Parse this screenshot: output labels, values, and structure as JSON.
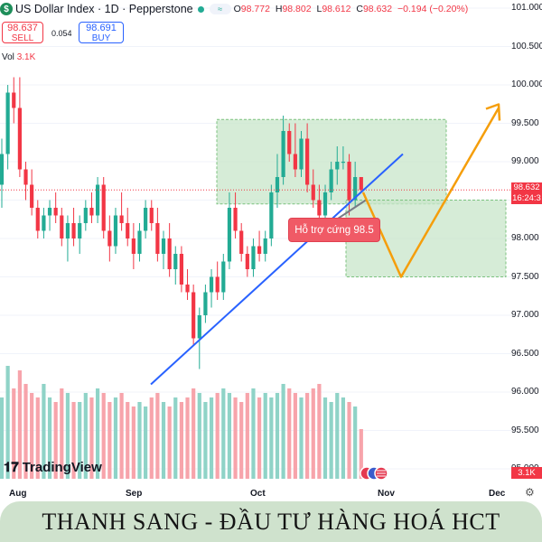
{
  "header": {
    "symbol_icon": "dollar-icon",
    "title": "US Dollar Index · 1D · Pepperstone",
    "badge": "≈",
    "ohlc": [
      {
        "label": "O",
        "value": "98.772"
      },
      {
        "label": "H",
        "value": "98.802"
      },
      {
        "label": "L",
        "value": "98.612"
      },
      {
        "label": "C",
        "value": "98.632"
      },
      {
        "label": "",
        "value": "−0.194 (−0.20%)"
      }
    ]
  },
  "trade": {
    "sell_price": "98.637",
    "sell_label": "SELL",
    "spread": "0.054",
    "buy_price": "98.691",
    "buy_label": "BUY"
  },
  "volume_legend": {
    "label": "Vol",
    "value": "3.1K"
  },
  "annotation": "Hỗ trợ cứng 98.5",
  "last_price": {
    "price": "98.632",
    "countdown": "16:24:3"
  },
  "volume_tag": "3.1K",
  "watermark": "TradingView",
  "banner": "THANH SANG - ĐẦU TƯ HÀNG HOÁ HCT",
  "colors": {
    "up": "#22ab94",
    "down": "#f23645",
    "zone": "#c8e6c9",
    "trend": "#2962ff",
    "projection": "#f59e0b"
  },
  "chart_data": {
    "type": "candlestick",
    "symbol": "US Dollar Index",
    "timeframe": "1D",
    "x_ticks": [
      "Aug",
      "Sep",
      "Oct",
      "Nov",
      "Dec"
    ],
    "y_ticks": [
      101.0,
      100.5,
      100.0,
      99.5,
      99.0,
      98.5,
      98.0,
      97.5,
      97.0,
      96.5,
      96.0,
      95.5,
      95.0
    ],
    "ylim": [
      95.0,
      101.0
    ],
    "candles": [
      {
        "o": 98.7,
        "h": 99.3,
        "l": 98.4,
        "c": 99.1
      },
      {
        "o": 99.1,
        "h": 100.0,
        "l": 98.9,
        "c": 99.9
      },
      {
        "o": 99.9,
        "h": 100.1,
        "l": 99.5,
        "c": 99.7
      },
      {
        "o": 99.7,
        "h": 100.1,
        "l": 98.8,
        "c": 98.9
      },
      {
        "o": 98.9,
        "h": 99.0,
        "l": 98.5,
        "c": 98.7
      },
      {
        "o": 98.7,
        "h": 98.9,
        "l": 98.3,
        "c": 98.4
      },
      {
        "o": 98.4,
        "h": 98.5,
        "l": 98.0,
        "c": 98.1
      },
      {
        "o": 98.1,
        "h": 98.4,
        "l": 98.0,
        "c": 98.3
      },
      {
        "o": 98.3,
        "h": 98.5,
        "l": 98.1,
        "c": 98.4
      },
      {
        "o": 98.4,
        "h": 98.6,
        "l": 98.2,
        "c": 98.3
      },
      {
        "o": 98.3,
        "h": 98.4,
        "l": 97.9,
        "c": 98.0
      },
      {
        "o": 98.0,
        "h": 98.3,
        "l": 97.7,
        "c": 98.2
      },
      {
        "o": 98.2,
        "h": 98.4,
        "l": 97.9,
        "c": 98.0
      },
      {
        "o": 98.0,
        "h": 98.3,
        "l": 97.8,
        "c": 98.2
      },
      {
        "o": 98.2,
        "h": 98.5,
        "l": 98.1,
        "c": 98.4
      },
      {
        "o": 98.4,
        "h": 98.6,
        "l": 98.2,
        "c": 98.3
      },
      {
        "o": 98.3,
        "h": 98.8,
        "l": 98.2,
        "c": 98.7
      },
      {
        "o": 98.7,
        "h": 98.8,
        "l": 98.0,
        "c": 98.1
      },
      {
        "o": 98.1,
        "h": 98.3,
        "l": 97.7,
        "c": 97.9
      },
      {
        "o": 97.9,
        "h": 98.4,
        "l": 97.8,
        "c": 98.3
      },
      {
        "o": 98.3,
        "h": 98.6,
        "l": 98.1,
        "c": 98.2
      },
      {
        "o": 98.2,
        "h": 98.4,
        "l": 97.9,
        "c": 98.0
      },
      {
        "o": 98.0,
        "h": 98.2,
        "l": 97.6,
        "c": 97.8
      },
      {
        "o": 97.8,
        "h": 98.2,
        "l": 97.7,
        "c": 98.1
      },
      {
        "o": 98.1,
        "h": 98.5,
        "l": 98.0,
        "c": 98.4
      },
      {
        "o": 98.4,
        "h": 98.5,
        "l": 98.1,
        "c": 98.2
      },
      {
        "o": 98.2,
        "h": 98.4,
        "l": 97.7,
        "c": 97.8
      },
      {
        "o": 97.8,
        "h": 98.1,
        "l": 97.6,
        "c": 98.0
      },
      {
        "o": 98.0,
        "h": 98.2,
        "l": 97.5,
        "c": 97.6
      },
      {
        "o": 97.6,
        "h": 97.9,
        "l": 97.4,
        "c": 97.8
      },
      {
        "o": 97.8,
        "h": 97.9,
        "l": 97.3,
        "c": 97.4
      },
      {
        "o": 97.4,
        "h": 97.6,
        "l": 97.2,
        "c": 97.3
      },
      {
        "o": 97.3,
        "h": 97.4,
        "l": 96.6,
        "c": 96.7
      },
      {
        "o": 96.7,
        "h": 97.1,
        "l": 96.3,
        "c": 97.0
      },
      {
        "o": 97.0,
        "h": 97.4,
        "l": 96.9,
        "c": 97.3
      },
      {
        "o": 97.3,
        "h": 97.6,
        "l": 97.1,
        "c": 97.5
      },
      {
        "o": 97.5,
        "h": 97.7,
        "l": 97.2,
        "c": 97.3
      },
      {
        "o": 97.3,
        "h": 97.8,
        "l": 97.2,
        "c": 97.7
      },
      {
        "o": 97.7,
        "h": 98.6,
        "l": 97.6,
        "c": 98.4
      },
      {
        "o": 98.4,
        "h": 98.6,
        "l": 98.0,
        "c": 98.1
      },
      {
        "o": 98.1,
        "h": 98.2,
        "l": 97.7,
        "c": 97.8
      },
      {
        "o": 97.8,
        "h": 97.9,
        "l": 97.5,
        "c": 97.6
      },
      {
        "o": 97.6,
        "h": 98.0,
        "l": 97.5,
        "c": 97.9
      },
      {
        "o": 97.9,
        "h": 98.1,
        "l": 97.7,
        "c": 97.8
      },
      {
        "o": 97.8,
        "h": 98.1,
        "l": 97.7,
        "c": 98.0
      },
      {
        "o": 98.0,
        "h": 98.7,
        "l": 97.9,
        "c": 98.6
      },
      {
        "o": 98.6,
        "h": 99.1,
        "l": 98.4,
        "c": 98.8
      },
      {
        "o": 98.8,
        "h": 99.6,
        "l": 98.7,
        "c": 99.4
      },
      {
        "o": 99.4,
        "h": 99.5,
        "l": 99.0,
        "c": 99.1
      },
      {
        "o": 99.1,
        "h": 99.5,
        "l": 98.8,
        "c": 98.9
      },
      {
        "o": 98.9,
        "h": 99.4,
        "l": 98.8,
        "c": 99.3
      },
      {
        "o": 99.3,
        "h": 99.5,
        "l": 98.6,
        "c": 98.7
      },
      {
        "o": 98.7,
        "h": 98.9,
        "l": 98.4,
        "c": 98.5
      },
      {
        "o": 98.5,
        "h": 98.7,
        "l": 98.2,
        "c": 98.3
      },
      {
        "o": 98.3,
        "h": 98.7,
        "l": 98.2,
        "c": 98.6
      },
      {
        "o": 98.6,
        "h": 99.0,
        "l": 98.5,
        "c": 98.9
      },
      {
        "o": 98.9,
        "h": 99.2,
        "l": 98.7,
        "c": 99.0
      },
      {
        "o": 99.0,
        "h": 99.2,
        "l": 98.9,
        "c": 99.0
      },
      {
        "o": 99.0,
        "h": 99.1,
        "l": 98.3,
        "c": 98.5
      },
      {
        "o": 98.5,
        "h": 99.0,
        "l": 98.4,
        "c": 98.8
      },
      {
        "o": 98.8,
        "h": 98.8,
        "l": 98.6,
        "c": 98.632
      }
    ],
    "volume": [
      0.9,
      1.25,
      1.0,
      1.2,
      1.05,
      0.95,
      0.9,
      1.05,
      0.9,
      0.85,
      1.0,
      0.95,
      0.85,
      0.85,
      0.95,
      0.9,
      1.0,
      0.95,
      0.85,
      0.9,
      0.95,
      0.85,
      0.8,
      0.85,
      0.8,
      0.9,
      0.95,
      0.85,
      0.8,
      0.9,
      0.85,
      0.9,
      1.0,
      0.95,
      0.85,
      0.9,
      0.95,
      1.0,
      0.95,
      0.9,
      0.85,
      0.95,
      1.0,
      0.9,
      0.95,
      0.9,
      0.95,
      1.05,
      1.0,
      0.95,
      0.9,
      0.95,
      1.0,
      1.05,
      0.9,
      0.85,
      0.95,
      0.9,
      0.85,
      0.8,
      0.55
    ],
    "support_zone": {
      "from": 98.45,
      "to": 99.55
    },
    "target_zone": {
      "from": 97.5,
      "to": 98.5
    },
    "projection_path": [
      98.6,
      97.5,
      99.7
    ],
    "trendline": {
      "from": 96.1,
      "to": 99.1
    }
  }
}
